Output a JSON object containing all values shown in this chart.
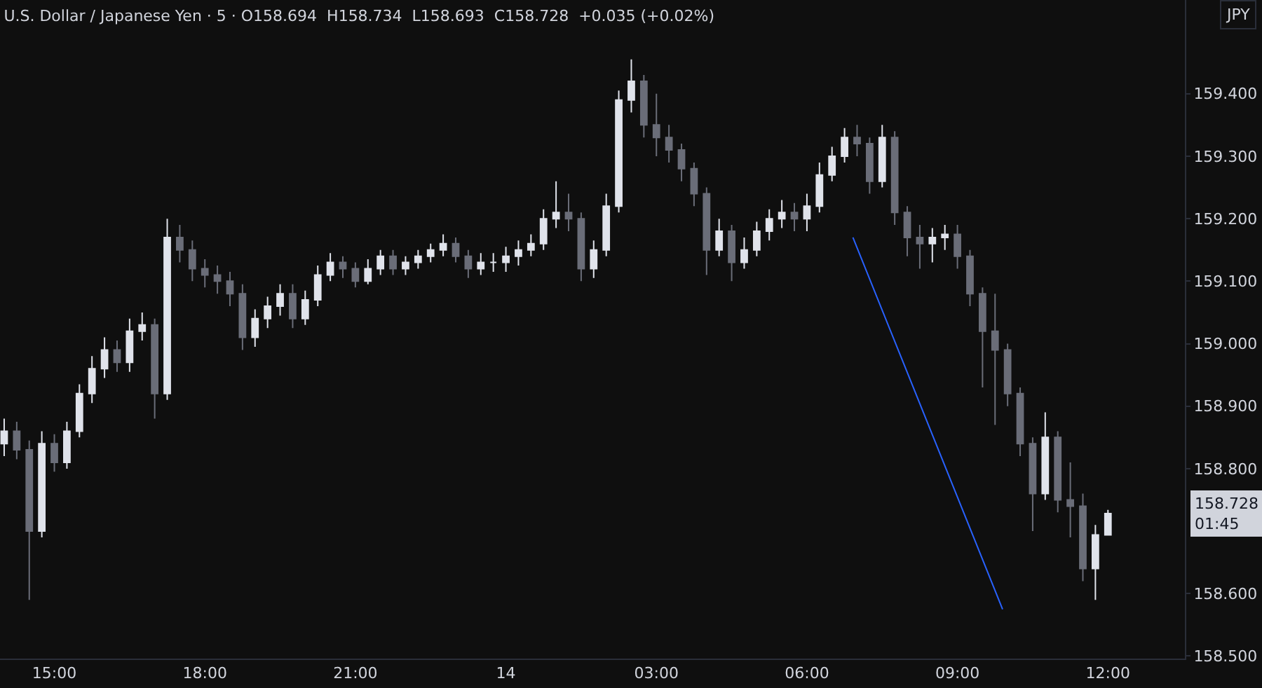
{
  "chart_data": {
    "type": "candlestick",
    "title": "U.S. Dollar / Japanese Yen · 5 · O158.694  H158.734  L158.693  C158.728  +0.035 (+0.02%)",
    "annotations": [
      "JPY",
      "158.728\n01:45"
    ],
    "x": [
      "--01-13T14:00",
      "--01-13T14:15",
      "--01-13T14:30",
      "--01-13T14:45",
      "--01-13T15:00",
      "--01-13T15:15",
      "--01-13T15:30",
      "--01-13T15:45",
      "--01-13T16:00",
      "--01-13T16:15",
      "--01-13T16:30",
      "--01-13T16:45",
      "--01-13T17:00",
      "--01-13T17:15",
      "--01-13T17:30",
      "--01-13T17:45",
      "--01-13T18:00",
      "--01-13T18:15",
      "--01-13T18:30",
      "--01-13T18:45",
      "--01-13T19:00",
      "--01-13T19:15",
      "--01-13T19:30",
      "--01-13T19:45",
      "--01-13T20:00",
      "--01-13T20:15",
      "--01-13T20:30",
      "--01-13T20:45",
      "--01-13T21:00",
      "--01-13T21:15",
      "--01-13T21:30",
      "--01-13T21:45",
      "--01-13T22:00",
      "--01-13T22:15",
      "--01-13T22:30",
      "--01-13T22:45",
      "--01-13T23:00",
      "--01-13T23:15",
      "--01-13T23:30",
      "--01-13T23:45",
      "--01-14T00:00",
      "--01-14T00:15",
      "--01-14T00:30",
      "--01-14T00:45",
      "--01-14T01:00",
      "--01-14T01:15",
      "--01-14T01:30",
      "--01-14T01:45",
      "--01-14T02:00",
      "--01-14T02:15",
      "--01-14T02:30",
      "--01-14T02:45",
      "--01-14T03:00",
      "--01-14T03:15",
      "--01-14T03:30",
      "--01-14T03:45",
      "--01-14T04:00",
      "--01-14T04:15",
      "--01-14T04:30",
      "--01-14T04:45",
      "--01-14T05:00",
      "--01-14T05:15",
      "--01-14T05:30",
      "--01-14T05:45",
      "--01-14T06:00",
      "--01-14T06:15",
      "--01-14T06:30",
      "--01-14T06:45",
      "--01-14T07:00",
      "--01-14T07:15",
      "--01-14T07:30",
      "--01-14T07:45",
      "--01-14T08:00",
      "--01-14T08:15",
      "--01-14T08:30",
      "--01-14T08:45",
      "--01-14T09:00",
      "--01-14T09:15",
      "--01-14T09:30",
      "--01-14T09:45",
      "--01-14T10:00",
      "--01-14T10:15",
      "--01-14T10:30",
      "--01-14T10:45",
      "--01-14T11:00",
      "--01-14T11:15",
      "--01-14T11:30",
      "--01-14T11:45",
      "--01-14T12:00"
    ],
    "ohlc": [
      [
        158.84,
        158.88,
        158.82,
        158.86
      ],
      [
        158.86,
        158.875,
        158.815,
        158.83
      ],
      [
        158.83,
        158.845,
        158.59,
        158.7
      ],
      [
        158.7,
        158.86,
        158.69,
        158.84
      ],
      [
        158.84,
        158.855,
        158.795,
        158.81
      ],
      [
        158.81,
        158.875,
        158.8,
        158.86
      ],
      [
        158.86,
        158.935,
        158.85,
        158.92
      ],
      [
        158.92,
        158.98,
        158.905,
        158.96
      ],
      [
        158.96,
        159.01,
        158.945,
        158.99
      ],
      [
        158.99,
        159.005,
        158.955,
        158.97
      ],
      [
        158.97,
        159.04,
        158.955,
        159.02
      ],
      [
        159.02,
        159.05,
        159.005,
        159.03
      ],
      [
        159.03,
        159.04,
        158.88,
        158.92
      ],
      [
        158.92,
        159.2,
        158.91,
        159.17
      ],
      [
        159.17,
        159.19,
        159.13,
        159.15
      ],
      [
        159.15,
        159.165,
        159.1,
        159.12
      ],
      [
        159.12,
        159.135,
        159.09,
        159.11
      ],
      [
        159.11,
        159.125,
        159.08,
        159.1
      ],
      [
        159.1,
        159.115,
        159.06,
        159.08
      ],
      [
        159.08,
        159.095,
        158.99,
        159.01
      ],
      [
        159.01,
        159.055,
        158.995,
        159.04
      ],
      [
        159.04,
        159.075,
        159.025,
        159.06
      ],
      [
        159.06,
        159.095,
        159.045,
        159.08
      ],
      [
        159.08,
        159.095,
        159.025,
        159.04
      ],
      [
        159.04,
        159.085,
        159.03,
        159.07
      ],
      [
        159.07,
        159.125,
        159.06,
        159.11
      ],
      [
        159.11,
        159.145,
        159.1,
        159.13
      ],
      [
        159.13,
        159.14,
        159.105,
        159.12
      ],
      [
        159.12,
        159.13,
        159.09,
        159.1
      ],
      [
        159.1,
        159.135,
        159.095,
        159.12
      ],
      [
        159.12,
        159.15,
        159.11,
        159.14
      ],
      [
        159.14,
        159.15,
        159.11,
        159.12
      ],
      [
        159.12,
        159.14,
        159.11,
        159.13
      ],
      [
        159.13,
        159.15,
        159.12,
        159.14
      ],
      [
        159.14,
        159.16,
        159.13,
        159.15
      ],
      [
        159.15,
        159.175,
        159.14,
        159.16
      ],
      [
        159.16,
        159.17,
        159.13,
        159.14
      ],
      [
        159.14,
        159.15,
        159.105,
        159.12
      ],
      [
        159.12,
        159.145,
        159.11,
        159.13
      ],
      [
        159.13,
        159.145,
        159.115,
        159.13
      ],
      [
        159.13,
        159.155,
        159.115,
        159.14
      ],
      [
        159.14,
        159.165,
        159.125,
        159.15
      ],
      [
        159.15,
        159.175,
        159.14,
        159.16
      ],
      [
        159.16,
        159.215,
        159.15,
        159.2
      ],
      [
        159.2,
        159.26,
        159.185,
        159.21
      ],
      [
        159.21,
        159.24,
        159.18,
        159.2
      ],
      [
        159.2,
        159.21,
        159.1,
        159.12
      ],
      [
        159.12,
        159.165,
        159.105,
        159.15
      ],
      [
        159.15,
        159.24,
        159.14,
        159.22
      ],
      [
        159.22,
        159.405,
        159.21,
        159.39
      ],
      [
        159.39,
        159.455,
        159.37,
        159.42
      ],
      [
        159.42,
        159.43,
        159.33,
        159.35
      ],
      [
        159.35,
        159.4,
        159.3,
        159.33
      ],
      [
        159.33,
        159.35,
        159.29,
        159.31
      ],
      [
        159.31,
        159.32,
        159.26,
        159.28
      ],
      [
        159.28,
        159.29,
        159.22,
        159.24
      ],
      [
        159.24,
        159.25,
        159.11,
        159.15
      ],
      [
        159.15,
        159.2,
        159.14,
        159.18
      ],
      [
        159.18,
        159.19,
        159.1,
        159.13
      ],
      [
        159.13,
        159.17,
        159.12,
        159.15
      ],
      [
        159.15,
        159.195,
        159.14,
        159.18
      ],
      [
        159.18,
        159.215,
        159.165,
        159.2
      ],
      [
        159.2,
        159.23,
        159.185,
        159.21
      ],
      [
        159.21,
        159.225,
        159.18,
        159.2
      ],
      [
        159.2,
        159.24,
        159.18,
        159.22
      ],
      [
        159.22,
        159.29,
        159.21,
        159.27
      ],
      [
        159.27,
        159.315,
        159.26,
        159.3
      ],
      [
        159.3,
        159.345,
        159.29,
        159.33
      ],
      [
        159.33,
        159.35,
        159.3,
        159.32
      ],
      [
        159.32,
        159.33,
        159.24,
        159.26
      ],
      [
        159.26,
        159.35,
        159.25,
        159.33
      ],
      [
        159.33,
        159.34,
        159.19,
        159.21
      ],
      [
        159.21,
        159.22,
        159.14,
        159.17
      ],
      [
        159.17,
        159.19,
        159.12,
        159.16
      ],
      [
        159.16,
        159.185,
        159.13,
        159.17
      ],
      [
        159.17,
        159.19,
        159.15,
        159.175
      ],
      [
        159.175,
        159.19,
        159.12,
        159.14
      ],
      [
        159.14,
        159.15,
        159.06,
        159.08
      ],
      [
        159.08,
        159.09,
        158.93,
        159.02
      ],
      [
        159.02,
        159.08,
        158.87,
        158.99
      ],
      [
        158.99,
        159.0,
        158.9,
        158.92
      ],
      [
        158.92,
        158.93,
        158.82,
        158.84
      ],
      [
        158.84,
        158.85,
        158.7,
        158.76
      ],
      [
        158.76,
        158.89,
        158.75,
        158.85
      ],
      [
        158.85,
        158.86,
        158.73,
        158.75
      ],
      [
        158.75,
        158.81,
        158.69,
        158.74
      ],
      [
        158.74,
        158.76,
        158.62,
        158.64
      ],
      [
        158.64,
        158.71,
        158.59,
        158.694
      ],
      [
        158.694,
        158.734,
        158.693,
        158.728
      ]
    ],
    "colors": [
      "#e0e3eb",
      "#6a6d78",
      "#6a6d78",
      "#e0e3eb",
      "#6a6d78",
      "#e0e3eb",
      "#e0e3eb",
      "#e0e3eb",
      "#e0e3eb",
      "#6a6d78",
      "#e0e3eb",
      "#e0e3eb",
      "#6a6d78",
      "#e0e3eb",
      "#6a6d78",
      "#6a6d78",
      "#6a6d78",
      "#6a6d78",
      "#6a6d78",
      "#6a6d78",
      "#e0e3eb",
      "#e0e3eb",
      "#e0e3eb",
      "#6a6d78",
      "#e0e3eb",
      "#e0e3eb",
      "#e0e3eb",
      "#6a6d78",
      "#6a6d78",
      "#e0e3eb",
      "#e0e3eb",
      "#6a6d78",
      "#e0e3eb",
      "#e0e3eb",
      "#e0e3eb",
      "#e0e3eb",
      "#6a6d78",
      "#6a6d78",
      "#e0e3eb",
      "#e0e3eb",
      "#e0e3eb",
      "#e0e3eb",
      "#e0e3eb",
      "#e0e3eb",
      "#e0e3eb",
      "#6a6d78",
      "#6a6d78",
      "#e0e3eb",
      "#e0e3eb",
      "#e0e3eb",
      "#e0e3eb",
      "#6a6d78",
      "#6a6d78",
      "#6a6d78",
      "#6a6d78",
      "#6a6d78",
      "#6a6d78",
      "#e0e3eb",
      "#6a6d78",
      "#e0e3eb",
      "#e0e3eb",
      "#e0e3eb",
      "#e0e3eb",
      "#6a6d78",
      "#e0e3eb",
      "#e0e3eb",
      "#e0e3eb",
      "#e0e3eb",
      "#6a6d78",
      "#6a6d78",
      "#e0e3eb",
      "#6a6d78",
      "#6a6d78",
      "#6a6d78",
      "#e0e3eb",
      "#e0e3eb",
      "#6a6d78",
      "#6a6d78",
      "#6a6d78",
      "#6a6d78",
      "#6a6d78",
      "#6a6d78",
      "#6a6d78",
      "#e0e3eb",
      "#6a6d78",
      "#6a6d78",
      "#6a6d78",
      "#e0e3eb",
      "#e0e3eb"
    ],
    "series": [
      {
        "type": "line",
        "color": "#2962ff",
        "x": [
          "--01-14T06:55",
          "--01-14T09:54"
        ],
        "values": [
          159.17,
          158.575
        ]
      }
    ],
    "xlim": [
      "--01-13T13:55",
      "--01-14T13:32"
    ],
    "xticks": [
      {
        "value": "--01-13T15:00",
        "label": "15:00"
      },
      {
        "value": "--01-13T18:00",
        "label": "18:00"
      },
      {
        "value": "--01-13T21:00",
        "label": "21:00"
      },
      {
        "value": "--01-14T00:00",
        "label": "14"
      },
      {
        "value": "--01-14T03:00",
        "label": "03:00"
      },
      {
        "value": "--01-14T06:00",
        "label": "06:00"
      },
      {
        "value": "--01-14T09:00",
        "label": "09:00"
      },
      {
        "value": "--01-14T12:00",
        "label": "12:00"
      }
    ],
    "ylim": [
      158.496,
      159.55
    ],
    "yticks": [
      {
        "value": 158.5,
        "label": "158.500"
      },
      {
        "value": 158.6,
        "label": "158.600"
      },
      {
        "value": 158.8,
        "label": "158.800"
      },
      {
        "value": 158.9,
        "label": "158.900"
      },
      {
        "value": 159.0,
        "label": "159.000"
      },
      {
        "value": 159.1,
        "label": "159.100"
      },
      {
        "value": 159.2,
        "label": "159.200"
      },
      {
        "value": 159.3,
        "label": "159.300"
      },
      {
        "value": 159.4,
        "label": "159.400"
      }
    ],
    "grid": false
  }
}
